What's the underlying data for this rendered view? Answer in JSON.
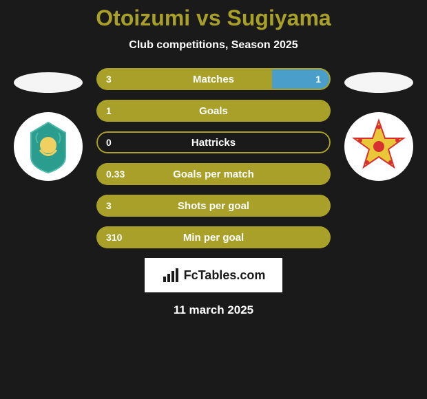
{
  "title_color": "#a8a028",
  "title": "Otoizumi vs Sugiyama",
  "subtitle": "Club competitions, Season 2025",
  "left_player": {
    "silhouette_color": "#f5f5f5",
    "badge_bg": "#ffffff",
    "badge_inner": "#2a9d8f",
    "badge_accent": "#4db8a8"
  },
  "right_player": {
    "silhouette_color": "#f5f5f5",
    "badge_bg": "#ffffff",
    "badge_inner": "#e8c838",
    "badge_accent": "#d83030"
  },
  "stat_colors": {
    "left_fill": "#a8a028",
    "right_fill": "#4a9eca",
    "border": "#a8a028"
  },
  "stats": [
    {
      "label": "Matches",
      "left_val": "3",
      "right_val": "1",
      "left_pct": 75,
      "right_pct": 25,
      "show_right": true
    },
    {
      "label": "Goals",
      "left_val": "1",
      "right_val": "",
      "left_pct": 100,
      "right_pct": 0,
      "show_right": false
    },
    {
      "label": "Hattricks",
      "left_val": "0",
      "right_val": "",
      "left_pct": 0,
      "right_pct": 0,
      "show_right": false
    },
    {
      "label": "Goals per match",
      "left_val": "0.33",
      "right_val": "",
      "left_pct": 100,
      "right_pct": 0,
      "show_right": false
    },
    {
      "label": "Shots per goal",
      "left_val": "3",
      "right_val": "",
      "left_pct": 100,
      "right_pct": 0,
      "show_right": false
    },
    {
      "label": "Min per goal",
      "left_val": "310",
      "right_val": "",
      "left_pct": 100,
      "right_pct": 0,
      "show_right": false
    }
  ],
  "footer_brand": "FcTables.com",
  "date": "11 march 2025"
}
